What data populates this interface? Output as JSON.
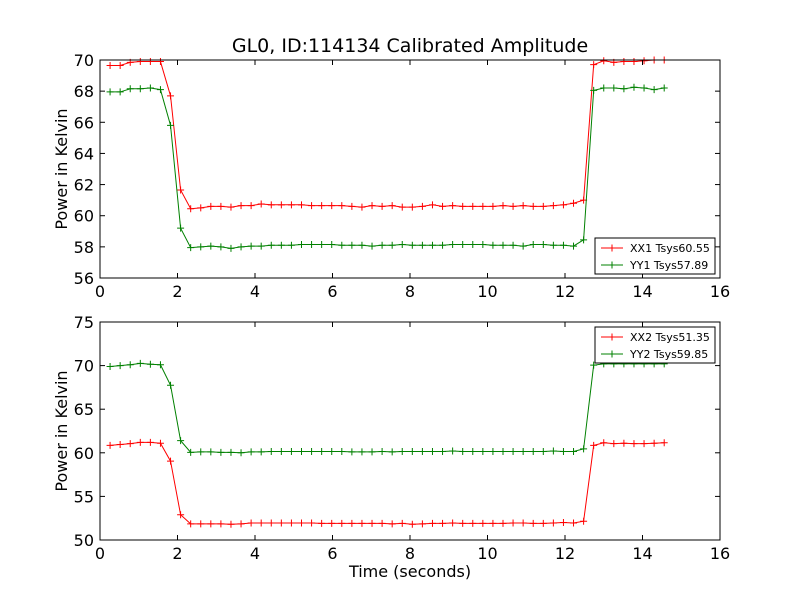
{
  "figure": {
    "title": "GL0, ID:114134 Calibrated Amplitude"
  },
  "chart_data": [
    {
      "type": "line",
      "title": "GL0, ID:114134 Calibrated Amplitude",
      "xlabel": "",
      "ylabel": "Power in Kelvin",
      "xlim": [
        0,
        16
      ],
      "ylim": [
        56,
        70
      ],
      "xticks": [
        "0",
        "2",
        "4",
        "6",
        "8",
        "10",
        "12",
        "14",
        "16"
      ],
      "yticks": [
        "56",
        "58",
        "60",
        "62",
        "64",
        "66",
        "68",
        "70"
      ],
      "grid": false,
      "legend_position": "lower-right",
      "x": [
        0.26,
        0.52,
        0.78,
        1.04,
        1.3,
        1.56,
        1.82,
        2.08,
        2.34,
        2.6,
        2.86,
        3.12,
        3.38,
        3.64,
        3.9,
        4.16,
        4.42,
        4.68,
        4.94,
        5.2,
        5.46,
        5.72,
        5.98,
        6.24,
        6.5,
        6.76,
        7.02,
        7.28,
        7.54,
        7.8,
        8.06,
        8.32,
        8.58,
        8.84,
        9.1,
        9.36,
        9.62,
        9.88,
        10.14,
        10.4,
        10.66,
        10.92,
        11.18,
        11.44,
        11.7,
        11.96,
        12.22,
        12.48,
        12.74,
        13.0,
        13.26,
        13.52,
        13.78,
        14.04,
        14.3,
        14.56
      ],
      "series": [
        {
          "name": "XX1 Tsys60.55",
          "color": "#ff0000",
          "values": [
            69.65,
            69.65,
            69.85,
            69.9,
            69.9,
            69.9,
            67.7,
            61.65,
            60.45,
            60.5,
            60.6,
            60.6,
            60.55,
            60.65,
            60.65,
            60.75,
            60.7,
            60.7,
            60.7,
            60.7,
            60.65,
            60.65,
            60.65,
            60.65,
            60.6,
            60.55,
            60.65,
            60.6,
            60.65,
            60.55,
            60.55,
            60.6,
            60.7,
            60.6,
            60.65,
            60.6,
            60.6,
            60.6,
            60.6,
            60.65,
            60.6,
            60.65,
            60.6,
            60.6,
            60.65,
            60.7,
            60.8,
            61.0,
            69.7,
            69.95,
            69.85,
            69.9,
            69.9,
            69.95,
            70.0,
            70.0
          ]
        },
        {
          "name": "YY1 Tsys57.89",
          "color": "#008000",
          "values": [
            67.95,
            67.95,
            68.15,
            68.15,
            68.2,
            68.1,
            65.8,
            59.2,
            57.95,
            58.0,
            58.05,
            58.0,
            57.9,
            58.0,
            58.05,
            58.05,
            58.1,
            58.1,
            58.1,
            58.15,
            58.15,
            58.15,
            58.15,
            58.1,
            58.1,
            58.1,
            58.05,
            58.1,
            58.1,
            58.15,
            58.1,
            58.1,
            58.1,
            58.1,
            58.15,
            58.15,
            58.15,
            58.15,
            58.1,
            58.1,
            58.1,
            58.05,
            58.15,
            58.15,
            58.1,
            58.1,
            58.05,
            58.45,
            68.05,
            68.2,
            68.2,
            68.15,
            68.25,
            68.2,
            68.1,
            68.2
          ]
        }
      ]
    },
    {
      "type": "line",
      "title": "",
      "xlabel": "Time (seconds)",
      "ylabel": "Power in Kelvin",
      "xlim": [
        0,
        16
      ],
      "ylim": [
        50,
        75
      ],
      "xticks": [
        "0",
        "2",
        "4",
        "6",
        "8",
        "10",
        "12",
        "14",
        "16"
      ],
      "yticks": [
        "50",
        "55",
        "60",
        "65",
        "70",
        "75"
      ],
      "grid": false,
      "legend_position": "upper-right",
      "x": [
        0.26,
        0.52,
        0.78,
        1.04,
        1.3,
        1.56,
        1.82,
        2.08,
        2.34,
        2.6,
        2.86,
        3.12,
        3.38,
        3.64,
        3.9,
        4.16,
        4.42,
        4.68,
        4.94,
        5.2,
        5.46,
        5.72,
        5.98,
        6.24,
        6.5,
        6.76,
        7.02,
        7.28,
        7.54,
        7.8,
        8.06,
        8.32,
        8.58,
        8.84,
        9.1,
        9.36,
        9.62,
        9.88,
        10.14,
        10.4,
        10.66,
        10.92,
        11.18,
        11.44,
        11.7,
        11.96,
        12.22,
        12.48,
        12.74,
        13.0,
        13.26,
        13.52,
        13.78,
        14.04,
        14.3,
        14.56
      ],
      "series": [
        {
          "name": "XX2 Tsys51.35",
          "color": "#ff0000",
          "values": [
            60.85,
            60.95,
            61.05,
            61.2,
            61.2,
            61.1,
            59.05,
            52.9,
            51.85,
            51.85,
            51.85,
            51.85,
            51.8,
            51.85,
            51.95,
            51.95,
            51.95,
            51.95,
            51.95,
            51.95,
            51.95,
            51.9,
            51.9,
            51.9,
            51.9,
            51.9,
            51.9,
            51.9,
            51.85,
            51.9,
            51.8,
            51.85,
            51.9,
            51.9,
            51.95,
            51.9,
            51.9,
            51.9,
            51.9,
            51.9,
            51.95,
            51.95,
            51.9,
            51.9,
            51.95,
            52.0,
            51.95,
            52.15,
            60.85,
            61.15,
            61.05,
            61.1,
            61.05,
            61.05,
            61.1,
            61.15
          ]
        },
        {
          "name": "YY2 Tsys59.85",
          "color": "#008000",
          "values": [
            69.9,
            70.0,
            70.1,
            70.25,
            70.15,
            70.1,
            67.75,
            61.4,
            60.05,
            60.1,
            60.1,
            60.05,
            60.05,
            60.0,
            60.1,
            60.1,
            60.15,
            60.15,
            60.15,
            60.15,
            60.15,
            60.15,
            60.15,
            60.15,
            60.1,
            60.1,
            60.1,
            60.15,
            60.1,
            60.15,
            60.15,
            60.15,
            60.15,
            60.15,
            60.2,
            60.15,
            60.15,
            60.15,
            60.15,
            60.15,
            60.15,
            60.15,
            60.15,
            60.15,
            60.2,
            60.15,
            60.15,
            60.45,
            70.05,
            70.2,
            70.2,
            70.2,
            70.2,
            70.2,
            70.2,
            70.2
          ]
        }
      ]
    }
  ]
}
